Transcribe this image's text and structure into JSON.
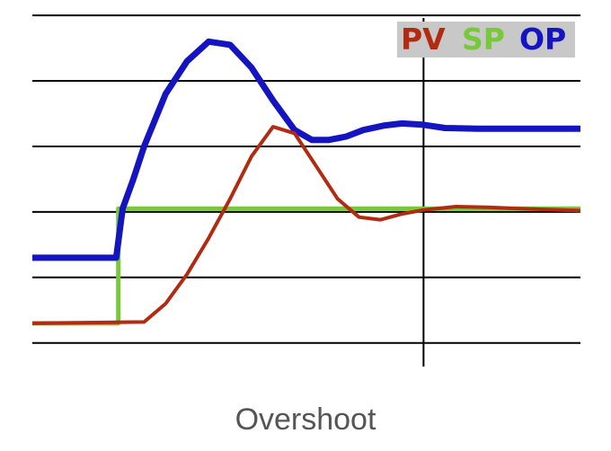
{
  "caption": "Overshoot",
  "chart_data": {
    "type": "line",
    "title": "",
    "xlabel": "",
    "ylabel": "",
    "grid": true,
    "grid_y_lines": [
      0,
      1,
      2,
      3,
      4,
      5
    ],
    "grid_x_lines": [
      1,
      2
    ],
    "xlim": [
      -0.82,
      1.73
    ],
    "ylim": [
      -0.36,
      4.96
    ],
    "legend": {
      "placement": "top-right",
      "background": "#c8c8c8",
      "entries": [
        {
          "label": "PV",
          "color": "#b22a12"
        },
        {
          "label": "SP",
          "color": "#77c93a"
        },
        {
          "label": "OP",
          "color": "#1414c0"
        }
      ]
    },
    "series": [
      {
        "key": "sp",
        "color": "#77c93a",
        "points": [
          [
            -0.82,
            0.3
          ],
          [
            -0.42,
            0.3
          ],
          [
            -0.42,
            2.05
          ],
          [
            -0.4,
            2.05
          ],
          [
            1.73,
            2.05
          ]
        ]
      },
      {
        "key": "op",
        "color": "#1414c0",
        "points": [
          [
            -0.82,
            1.3
          ],
          [
            -0.43,
            1.3
          ],
          [
            -0.4,
            2.05
          ],
          [
            -0.35,
            2.5
          ],
          [
            -0.3,
            3.0
          ],
          [
            -0.2,
            3.8
          ],
          [
            -0.1,
            4.3
          ],
          [
            0.0,
            4.6
          ],
          [
            0.1,
            4.55
          ],
          [
            0.2,
            4.2
          ],
          [
            0.3,
            3.7
          ],
          [
            0.4,
            3.25
          ],
          [
            0.48,
            3.1
          ],
          [
            0.56,
            3.1
          ],
          [
            0.64,
            3.15
          ],
          [
            0.72,
            3.25
          ],
          [
            0.82,
            3.32
          ],
          [
            0.9,
            3.35
          ],
          [
            1.0,
            3.33
          ],
          [
            1.1,
            3.28
          ],
          [
            1.25,
            3.27
          ],
          [
            1.73,
            3.27
          ]
        ]
      },
      {
        "key": "pv",
        "color": "#b22a12",
        "points": [
          [
            -0.82,
            0.3
          ],
          [
            -0.3,
            0.32
          ],
          [
            -0.2,
            0.6
          ],
          [
            -0.1,
            1.05
          ],
          [
            0.0,
            1.6
          ],
          [
            0.1,
            2.2
          ],
          [
            0.2,
            2.85
          ],
          [
            0.3,
            3.3
          ],
          [
            0.4,
            3.2
          ],
          [
            0.5,
            2.7
          ],
          [
            0.6,
            2.2
          ],
          [
            0.7,
            1.92
          ],
          [
            0.8,
            1.88
          ],
          [
            0.9,
            1.97
          ],
          [
            1.0,
            2.03
          ],
          [
            1.15,
            2.08
          ],
          [
            1.3,
            2.07
          ],
          [
            1.45,
            2.05
          ],
          [
            1.73,
            2.02
          ]
        ]
      }
    ]
  }
}
